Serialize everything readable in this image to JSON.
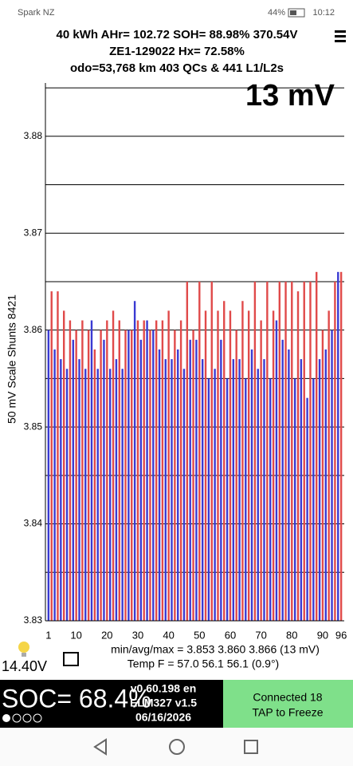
{
  "status_bar": {
    "carrier": "Spark NZ",
    "battery": "44%",
    "time": "10:12"
  },
  "header": {
    "line1": "40 kWh  AHr= 102.72 SOH= 88.98% 370.54V",
    "line2": "ZE1-129022   Hx= 72.58%",
    "line3": "odo=53,768 km 403 QCs & 441 L1/L2s"
  },
  "chart_data": {
    "type": "bar",
    "annotation": "13 mV",
    "ylabel": "50 mV Scale Shunts 8421",
    "colors": [
      "#3a3ad2",
      "#e04a4a"
    ],
    "x": [
      1,
      2,
      3,
      4,
      5,
      6,
      7,
      8,
      9,
      10,
      11,
      12,
      13,
      14,
      15,
      16,
      17,
      18,
      19,
      20,
      21,
      22,
      23,
      24,
      25,
      26,
      27,
      28,
      29,
      30,
      31,
      32,
      33,
      34,
      35,
      36,
      37,
      38,
      39,
      40,
      41,
      42,
      43,
      44,
      45,
      46,
      47,
      48,
      49,
      50,
      51,
      52,
      53,
      54,
      55,
      56,
      57,
      58,
      59,
      60,
      61,
      62,
      63,
      64,
      65,
      66,
      67,
      68,
      69,
      70,
      71,
      72,
      73,
      74,
      75,
      76,
      77,
      78,
      79,
      80,
      81,
      82,
      83,
      84,
      85,
      86,
      87,
      88,
      89,
      90,
      91,
      92,
      93,
      94,
      95,
      96
    ],
    "values": [
      3.86,
      3.864,
      3.858,
      3.864,
      3.857,
      3.862,
      3.856,
      3.861,
      3.859,
      3.86,
      3.857,
      3.861,
      3.856,
      3.86,
      3.861,
      3.858,
      3.856,
      3.86,
      3.859,
      3.861,
      3.856,
      3.862,
      3.857,
      3.861,
      3.856,
      3.86,
      3.86,
      3.86,
      3.863,
      3.861,
      3.859,
      3.861,
      3.861,
      3.86,
      3.86,
      3.861,
      3.858,
      3.861,
      3.857,
      3.862,
      3.857,
      3.86,
      3.858,
      3.861,
      3.856,
      3.865,
      3.859,
      3.86,
      3.859,
      3.865,
      3.857,
      3.862,
      3.855,
      3.865,
      3.856,
      3.862,
      3.859,
      3.863,
      3.855,
      3.862,
      3.857,
      3.86,
      3.857,
      3.863,
      3.855,
      3.862,
      3.858,
      3.865,
      3.856,
      3.861,
      3.857,
      3.865,
      3.855,
      3.862,
      3.861,
      3.865,
      3.859,
      3.865,
      3.858,
      3.865,
      3.855,
      3.864,
      3.857,
      3.865,
      3.853,
      3.865,
      3.855,
      3.866,
      3.857,
      3.86,
      3.858,
      3.862,
      3.86,
      3.865,
      3.866,
      3.866
    ],
    "xlim": [
      0,
      97
    ],
    "xticks": [
      1,
      10,
      20,
      30,
      40,
      50,
      60,
      70,
      80,
      90,
      96
    ],
    "ylim": [
      3.83,
      3.8855
    ],
    "yticks": [
      3.83,
      3.84,
      3.85,
      3.86,
      3.87,
      3.88
    ],
    "ygrid": [
      3.835,
      3.845,
      3.855,
      3.865,
      3.875,
      3.885
    ]
  },
  "footer": {
    "minmax": "min/avg/max = 3.853 3.860 3.866  (13 mV)",
    "temp": "Temp F = 57.0  56.1  56.1  (0.9°)",
    "voltage": "14.40V",
    "soc": "SOC= 68.4%",
    "version": "v0.60.198 en",
    "adapter": "ELM327 v1.5",
    "date": "06/16/2026",
    "connected": "Connected 18",
    "tap": "TAP to Freeze"
  }
}
